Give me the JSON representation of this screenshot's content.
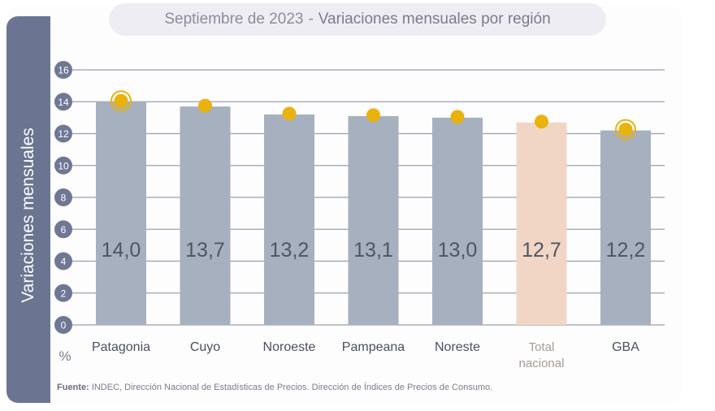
{
  "title": {
    "main": "Septiembre de 2023",
    "separator": "-",
    "sub": "Variaciones mensuales por región"
  },
  "footer": {
    "label": "Fuente:",
    "text": " INDEC, Dirección Nacional de Estadísticas de Precios. Dirección de Índices de Precios de Consumo."
  },
  "colors": {
    "bar": "#a7b0bf",
    "bar_highlight": "#f1d6c6",
    "marker": "#e9b20c",
    "axis_bubble": "#6f7794",
    "gridline": "#9aa0ae",
    "side_band": "#6b7592"
  },
  "chart_data": {
    "type": "bar",
    "ylabel": "Variaciones  mensuales",
    "yunit": "%",
    "ylim": [
      0,
      16
    ],
    "yticks": [
      0,
      2,
      4,
      6,
      8,
      10,
      12,
      14,
      16
    ],
    "categories": [
      "Patagonia",
      "Cuyo",
      "Noroeste",
      "Pampeana",
      "Noreste",
      "Total nacional",
      "GBA"
    ],
    "category_lines": [
      [
        "Patagonia"
      ],
      [
        "Cuyo"
      ],
      [
        "Noroeste"
      ],
      [
        "Pampeana"
      ],
      [
        "Noreste"
      ],
      [
        "Total",
        "nacional"
      ],
      [
        "GBA"
      ]
    ],
    "values": [
      14.0,
      13.7,
      13.2,
      13.1,
      13.0,
      12.7,
      12.2
    ],
    "value_labels": [
      "14,0",
      "13,7",
      "13,2",
      "13,1",
      "13,0",
      "12,7",
      "12,2"
    ],
    "highlighted_category": "Total nacional",
    "ringed_markers": [
      "Patagonia",
      "GBA"
    ],
    "grid": true
  }
}
